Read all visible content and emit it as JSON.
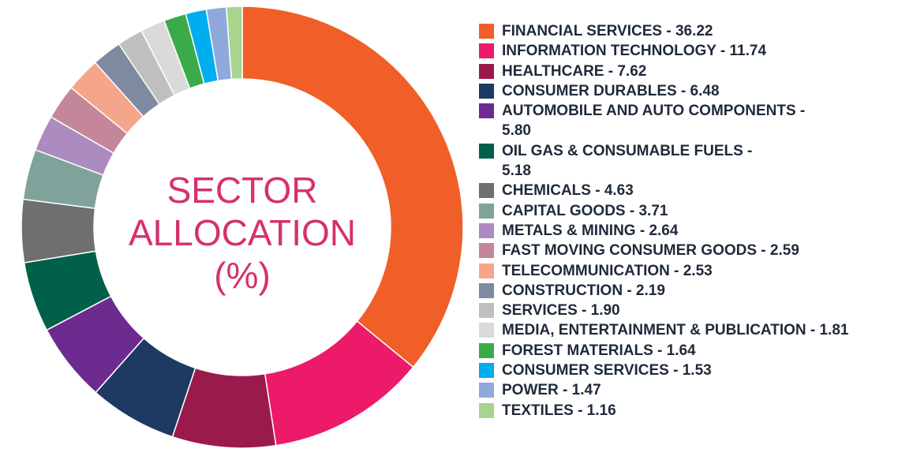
{
  "center_title": [
    "SECTOR",
    "ALLOCATION",
    "(%)"
  ],
  "chart_data": {
    "type": "pie",
    "donut": true,
    "title": "SECTOR ALLOCATION (%)",
    "legend_placement": "right",
    "slices": [
      {
        "label": "FINANCIAL SERVICES - 36.22",
        "value": 36.22,
        "color": "#f05f27"
      },
      {
        "label": "INFORMATION TECHNOLOGY - 11.74",
        "value": 11.74,
        "color": "#ec1a68"
      },
      {
        "label": "HEALTHCARE - 7.62",
        "value": 7.62,
        "color": "#9a1b4b"
      },
      {
        "label": "CONSUMER DURABLES - 6.48",
        "value": 6.48,
        "color": "#1e3a63"
      },
      {
        "label": "AUTOMOBILE AND AUTO COMPONENTS - 5.80",
        "value": 5.8,
        "color": "#6e2b8f"
      },
      {
        "label": "OIL GAS & CONSUMABLE FUELS - 5.18",
        "value": 5.18,
        "color": "#00604a"
      },
      {
        "label": "CHEMICALS - 4.63",
        "value": 4.63,
        "color": "#6f6f6f"
      },
      {
        "label": "CAPITAL GOODS - 3.71",
        "value": 3.71,
        "color": "#7fa39a"
      },
      {
        "label": "METALS & MINING - 2.64",
        "value": 2.64,
        "color": "#ab8bc0"
      },
      {
        "label": "FAST MOVING CONSUMER GOODS - 2.59",
        "value": 2.59,
        "color": "#c4879a"
      },
      {
        "label": "TELECOMMUNICATION - 2.53",
        "value": 2.53,
        "color": "#f5a68a"
      },
      {
        "label": "CONSTRUCTION - 2.19",
        "value": 2.19,
        "color": "#7d8aa0"
      },
      {
        "label": "SERVICES - 1.90",
        "value": 1.9,
        "color": "#bfbfbf"
      },
      {
        "label": "MEDIA, ENTERTAINMENT & PUBLICATION - 1.81",
        "value": 1.81,
        "color": "#dadada"
      },
      {
        "label": "FOREST MATERIALS - 1.64",
        "value": 1.64,
        "color": "#3bab4a"
      },
      {
        "label": "CONSUMER SERVICES  - 1.53",
        "value": 1.53,
        "color": "#00aeef"
      },
      {
        "label": "POWER - 1.47",
        "value": 1.47,
        "color": "#8fa9dc"
      },
      {
        "label": "TEXTILES - 1.16",
        "value": 1.16,
        "color": "#a9d48d"
      }
    ]
  }
}
